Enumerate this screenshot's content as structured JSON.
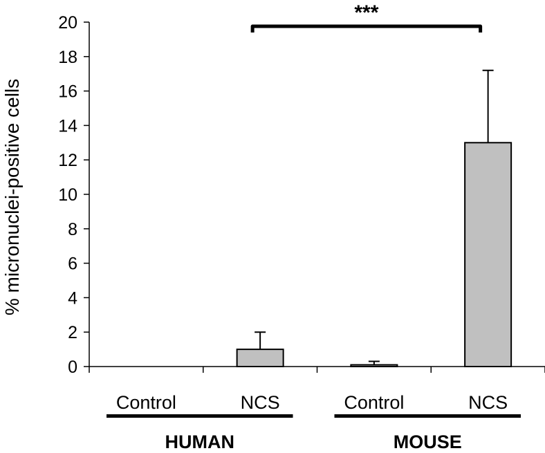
{
  "chart_data": {
    "type": "bar",
    "categories": [
      "Control",
      "NCS",
      "Control",
      "NCS"
    ],
    "groups": [
      {
        "label": "HUMAN",
        "categories": [
          0,
          1
        ]
      },
      {
        "label": "MOUSE",
        "categories": [
          2,
          3
        ]
      }
    ],
    "values": [
      0,
      1.0,
      0.1,
      13.0
    ],
    "errors": [
      0,
      1.0,
      0.2,
      4.2
    ],
    "ylabel": "% micronuclei-positive cells",
    "xlabel": "",
    "ylim": [
      0,
      20
    ],
    "yticks": [
      0,
      2,
      4,
      6,
      8,
      10,
      12,
      14,
      16,
      18,
      20
    ],
    "significance": {
      "from": 1,
      "to": 3,
      "label": "***"
    },
    "bar_color": "#c0c0c0",
    "grid": false,
    "legend": "none"
  }
}
